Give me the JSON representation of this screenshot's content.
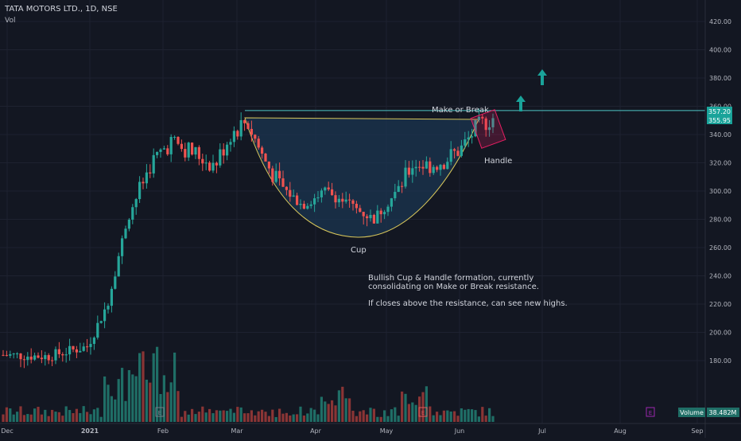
{
  "header": {
    "symbol": "TATA MOTORS LTD., 1D, NSE",
    "indicator": "Vol"
  },
  "colors": {
    "background": "#131722",
    "grid": "#1e2230",
    "up": "#26a69a",
    "down": "#ef5350",
    "vol_up": "#1f6e66",
    "vol_down": "#8a3535",
    "resistance": "#4ec6c6",
    "cup_fill": "#1b3550",
    "cup_stroke": "#d8c65a",
    "handle_box": "#e91e63",
    "arrow": "#1aa39a",
    "axis_text": "#b2b5be",
    "label_text": "#d1d4dc"
  },
  "annotations": {
    "make_or_break": "Make or Break",
    "handle": "Handle",
    "cup": "Cup",
    "note_line1": "Bullish Cup & Handle formation, currently",
    "note_line2": "consolidating on Make or Break resistance.",
    "note_line3": "If closes above the resistance, can see new highs."
  },
  "price_axis": {
    "ticks": [
      "420.00",
      "400.00",
      "380.00",
      "360.00",
      "340.00",
      "320.00",
      "300.00",
      "280.00",
      "260.00",
      "240.00",
      "220.00",
      "200.00",
      "180.00"
    ],
    "badge_high": "357.20",
    "badge_last": "355.95"
  },
  "time_axis": {
    "labels": [
      "Dec",
      "2021",
      "Feb",
      "Mar",
      "Apr",
      "May",
      "Jun",
      "Jul",
      "Aug",
      "Sep"
    ]
  },
  "volume": {
    "label": "Volume",
    "value": "38.482M"
  },
  "earnings_badge": "E",
  "chart_data": {
    "type": "candlestick",
    "title": "TATA MOTORS LTD., 1D, NSE",
    "y_range": [
      170,
      430
    ],
    "resistance": 357,
    "last_price": 355.95,
    "cup": {
      "start_x": "Mar",
      "bottom_price": 280,
      "end_x": "Jun"
    },
    "series": [
      {
        "name": "price",
        "key_points": [
          [
            "Dec",
            184
          ],
          [
            "2021",
            190
          ],
          [
            "Jan-mid",
            230
          ],
          [
            "Jan-late",
            300
          ],
          [
            "Feb",
            335
          ],
          [
            "Feb-mid",
            330
          ],
          [
            "Mar",
            350
          ],
          [
            "Mar-mid",
            325
          ],
          [
            "Apr",
            290
          ],
          [
            "Apr-mid",
            300
          ],
          [
            "May",
            305
          ],
          [
            "May-mid",
            325
          ],
          [
            "Jun",
            335
          ],
          [
            "Jun-mid",
            352
          ]
        ]
      }
    ]
  }
}
